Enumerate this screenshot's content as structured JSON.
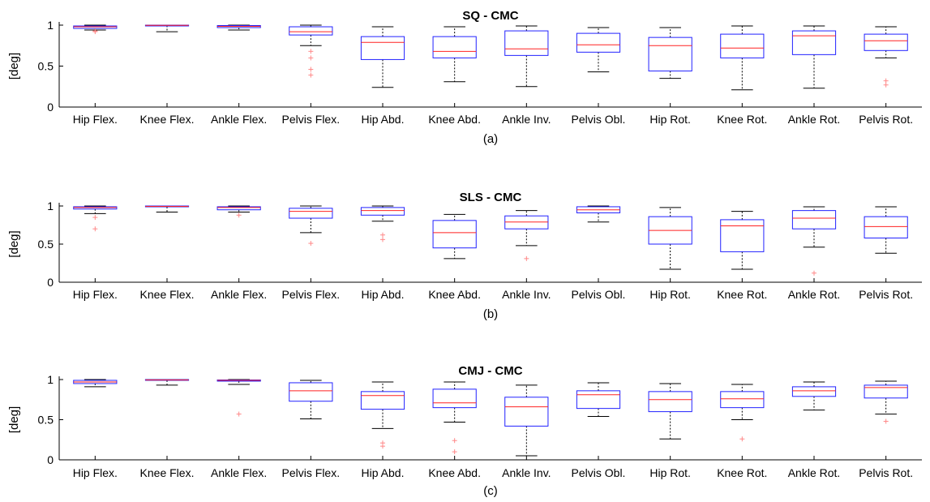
{
  "chart_data": [
    {
      "type": "boxplot",
      "title": "SQ - CMC",
      "ylabel": "[deg]",
      "caption": "(a)",
      "ylim": [
        0,
        1
      ],
      "yticks": [
        "0",
        "0.5",
        "1"
      ],
      "categories": [
        "Hip Flex.",
        "Knee Flex.",
        "Ankle Flex.",
        "Pelvis Flex.",
        "Hip Abd.",
        "Knee Abd.",
        "Ankle Inv.",
        "Pelvis Obl.",
        "Hip Rot.",
        "Knee Rot.",
        "Ankle Rot.",
        "Pelvis Rot."
      ],
      "boxes": [
        {
          "min": 0.94,
          "q1": 0.96,
          "median": 0.98,
          "q3": 0.99,
          "max": 1.0,
          "outliers": [
            0.93,
            0.92
          ]
        },
        {
          "min": 0.92,
          "q1": 0.995,
          "median": 0.998,
          "q3": 1.0,
          "max": 1.0,
          "outliers": []
        },
        {
          "min": 0.94,
          "q1": 0.97,
          "median": 0.985,
          "q3": 0.995,
          "max": 1.0,
          "outliers": []
        },
        {
          "min": 0.75,
          "q1": 0.88,
          "median": 0.92,
          "q3": 0.98,
          "max": 1.0,
          "outliers": [
            0.68,
            0.6,
            0.46,
            0.39
          ]
        },
        {
          "min": 0.24,
          "q1": 0.58,
          "median": 0.79,
          "q3": 0.86,
          "max": 0.98,
          "outliers": []
        },
        {
          "min": 0.31,
          "q1": 0.6,
          "median": 0.68,
          "q3": 0.86,
          "max": 0.98,
          "outliers": []
        },
        {
          "min": 0.25,
          "q1": 0.63,
          "median": 0.71,
          "q3": 0.93,
          "max": 0.99,
          "outliers": []
        },
        {
          "min": 0.43,
          "q1": 0.67,
          "median": 0.76,
          "q3": 0.9,
          "max": 0.97,
          "outliers": []
        },
        {
          "min": 0.35,
          "q1": 0.44,
          "median": 0.75,
          "q3": 0.85,
          "max": 0.97,
          "outliers": []
        },
        {
          "min": 0.21,
          "q1": 0.6,
          "median": 0.72,
          "q3": 0.89,
          "max": 0.99,
          "outliers": []
        },
        {
          "min": 0.23,
          "q1": 0.64,
          "median": 0.87,
          "q3": 0.93,
          "max": 0.99,
          "outliers": []
        },
        {
          "min": 0.6,
          "q1": 0.69,
          "median": 0.81,
          "q3": 0.89,
          "max": 0.98,
          "outliers": [
            0.32,
            0.27
          ]
        }
      ]
    },
    {
      "type": "boxplot",
      "title": "SLS - CMC",
      "ylabel": "[deg]",
      "caption": "(b)",
      "ylim": [
        0,
        1
      ],
      "yticks": [
        "0",
        "0.5",
        "1"
      ],
      "categories": [
        "Hip Flex.",
        "Knee Flex.",
        "Ankle Flex.",
        "Pelvis Flex.",
        "Hip Abd.",
        "Knee Abd.",
        "Ankle Inv.",
        "Pelvis Obl.",
        "Hip Rot.",
        "Knee Rot.",
        "Ankle Rot.",
        "Pelvis Rot."
      ],
      "boxes": [
        {
          "min": 0.9,
          "q1": 0.96,
          "median": 0.98,
          "q3": 0.99,
          "max": 1.0,
          "outliers": [
            0.85,
            0.7
          ]
        },
        {
          "min": 0.92,
          "q1": 0.99,
          "median": 0.995,
          "q3": 1.0,
          "max": 1.0,
          "outliers": []
        },
        {
          "min": 0.92,
          "q1": 0.95,
          "median": 0.98,
          "q3": 0.99,
          "max": 1.0,
          "outliers": [
            0.88
          ]
        },
        {
          "min": 0.65,
          "q1": 0.84,
          "median": 0.93,
          "q3": 0.97,
          "max": 1.0,
          "outliers": [
            0.51
          ]
        },
        {
          "min": 0.8,
          "q1": 0.88,
          "median": 0.94,
          "q3": 0.98,
          "max": 1.0,
          "outliers": [
            0.62,
            0.56
          ]
        },
        {
          "min": 0.31,
          "q1": 0.45,
          "median": 0.65,
          "q3": 0.81,
          "max": 0.89,
          "outliers": []
        },
        {
          "min": 0.48,
          "q1": 0.7,
          "median": 0.79,
          "q3": 0.87,
          "max": 0.94,
          "outliers": [
            0.31
          ]
        },
        {
          "min": 0.79,
          "q1": 0.91,
          "median": 0.95,
          "q3": 0.99,
          "max": 1.0,
          "outliers": []
        },
        {
          "min": 0.17,
          "q1": 0.5,
          "median": 0.68,
          "q3": 0.86,
          "max": 0.98,
          "outliers": []
        },
        {
          "min": 0.17,
          "q1": 0.4,
          "median": 0.74,
          "q3": 0.82,
          "max": 0.93,
          "outliers": []
        },
        {
          "min": 0.46,
          "q1": 0.7,
          "median": 0.84,
          "q3": 0.94,
          "max": 0.99,
          "outliers": [
            0.12
          ]
        },
        {
          "min": 0.38,
          "q1": 0.58,
          "median": 0.73,
          "q3": 0.86,
          "max": 0.99,
          "outliers": []
        }
      ]
    },
    {
      "type": "boxplot",
      "title": "CMJ - CMC",
      "ylabel": "[deg]",
      "caption": "(c)",
      "ylim": [
        0,
        1
      ],
      "yticks": [
        "0",
        "0.5",
        "1"
      ],
      "categories": [
        "Hip Flex.",
        "Knee Flex.",
        "Ankle Flex.",
        "Pelvis Flex.",
        "Hip Abd.",
        "Knee Abd.",
        "Ankle Inv.",
        "Pelvis Obl.",
        "Hip Rot.",
        "Knee Rot.",
        "Ankle Rot.",
        "Pelvis Rot."
      ],
      "boxes": [
        {
          "min": 0.91,
          "q1": 0.95,
          "median": 0.97,
          "q3": 0.99,
          "max": 1.0,
          "outliers": []
        },
        {
          "min": 0.93,
          "q1": 0.99,
          "median": 0.995,
          "q3": 1.0,
          "max": 1.0,
          "outliers": []
        },
        {
          "min": 0.94,
          "q1": 0.98,
          "median": 0.99,
          "q3": 0.995,
          "max": 1.0,
          "outliers": [
            0.57
          ]
        },
        {
          "min": 0.51,
          "q1": 0.73,
          "median": 0.86,
          "q3": 0.96,
          "max": 0.99,
          "outliers": []
        },
        {
          "min": 0.39,
          "q1": 0.63,
          "median": 0.8,
          "q3": 0.85,
          "max": 0.97,
          "outliers": [
            0.21,
            0.17
          ]
        },
        {
          "min": 0.47,
          "q1": 0.65,
          "median": 0.71,
          "q3": 0.88,
          "max": 0.97,
          "outliers": [
            0.24,
            0.1
          ]
        },
        {
          "min": 0.05,
          "q1": 0.42,
          "median": 0.66,
          "q3": 0.78,
          "max": 0.93,
          "outliers": []
        },
        {
          "min": 0.54,
          "q1": 0.64,
          "median": 0.81,
          "q3": 0.86,
          "max": 0.96,
          "outliers": []
        },
        {
          "min": 0.26,
          "q1": 0.6,
          "median": 0.75,
          "q3": 0.85,
          "max": 0.95,
          "outliers": []
        },
        {
          "min": 0.5,
          "q1": 0.65,
          "median": 0.76,
          "q3": 0.85,
          "max": 0.94,
          "outliers": [
            0.26
          ]
        },
        {
          "min": 0.62,
          "q1": 0.79,
          "median": 0.86,
          "q3": 0.91,
          "max": 0.97,
          "outliers": []
        },
        {
          "min": 0.57,
          "q1": 0.77,
          "median": 0.9,
          "q3": 0.93,
          "max": 0.98,
          "outliers": [
            0.48
          ]
        }
      ]
    }
  ],
  "colors": {
    "box": "#2222ff",
    "median": "#ff2222",
    "whisker": "#000000",
    "outlier": "#ff8888",
    "axis": "#000000"
  }
}
